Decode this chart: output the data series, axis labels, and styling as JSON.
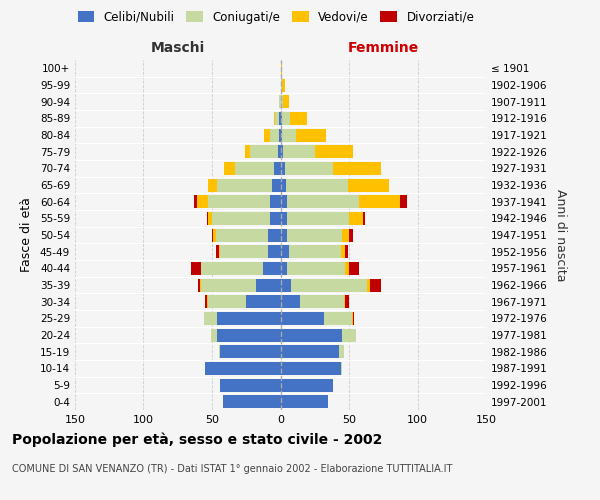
{
  "age_groups": [
    "100+",
    "95-99",
    "90-94",
    "85-89",
    "80-84",
    "75-79",
    "70-74",
    "65-69",
    "60-64",
    "55-59",
    "50-54",
    "45-49",
    "40-44",
    "35-39",
    "30-34",
    "25-29",
    "20-24",
    "15-19",
    "10-14",
    "5-9",
    "0-4"
  ],
  "birth_years": [
    "≤ 1901",
    "1902-1906",
    "1907-1911",
    "1912-1916",
    "1917-1921",
    "1922-1926",
    "1927-1931",
    "1932-1936",
    "1937-1941",
    "1942-1946",
    "1947-1951",
    "1952-1956",
    "1957-1961",
    "1962-1966",
    "1967-1971",
    "1972-1976",
    "1977-1981",
    "1982-1986",
    "1987-1991",
    "1992-1996",
    "1997-2001"
  ],
  "male": {
    "celibe": [
      0,
      0,
      0,
      1,
      1,
      2,
      5,
      6,
      8,
      8,
      9,
      9,
      13,
      18,
      25,
      46,
      46,
      44,
      55,
      44,
      42
    ],
    "coniugato": [
      0,
      0,
      1,
      3,
      7,
      20,
      28,
      40,
      45,
      42,
      38,
      35,
      45,
      40,
      28,
      10,
      5,
      1,
      0,
      0,
      0
    ],
    "vedovo": [
      0,
      0,
      0,
      1,
      4,
      4,
      8,
      7,
      8,
      3,
      2,
      1,
      0,
      1,
      1,
      0,
      0,
      0,
      0,
      0,
      0
    ],
    "divorziato": [
      0,
      0,
      0,
      0,
      0,
      0,
      0,
      0,
      2,
      1,
      1,
      2,
      7,
      1,
      1,
      0,
      0,
      0,
      0,
      0,
      0
    ]
  },
  "female": {
    "nubile": [
      0,
      0,
      0,
      1,
      1,
      2,
      3,
      4,
      5,
      5,
      5,
      6,
      5,
      8,
      14,
      32,
      45,
      43,
      44,
      38,
      35
    ],
    "coniugata": [
      0,
      1,
      2,
      6,
      10,
      23,
      35,
      45,
      52,
      45,
      40,
      38,
      42,
      55,
      32,
      20,
      10,
      3,
      1,
      0,
      0
    ],
    "vedova": [
      1,
      2,
      4,
      12,
      22,
      28,
      35,
      30,
      30,
      10,
      5,
      3,
      3,
      2,
      1,
      1,
      0,
      0,
      0,
      0,
      0
    ],
    "divorziata": [
      0,
      0,
      0,
      0,
      0,
      0,
      0,
      0,
      5,
      2,
      3,
      2,
      7,
      8,
      3,
      1,
      0,
      0,
      0,
      0,
      0
    ]
  },
  "colors": {
    "celibe": "#4472c4",
    "coniugato": "#c5d9a0",
    "vedovo": "#ffc000",
    "divorziato": "#c00000"
  },
  "title": "Popolazione per età, sesso e stato civile - 2002",
  "subtitle": "COMUNE DI SAN VENANZO (TR) - Dati ISTAT 1° gennaio 2002 - Elaborazione TUTTITALIA.IT",
  "label_maschi": "Maschi",
  "label_femmine": "Femmine",
  "ylabel_left": "Fasce di età",
  "ylabel_right": "Anni di nascita",
  "legend_labels": [
    "Celibi/Nubili",
    "Coniugati/e",
    "Vedovi/e",
    "Divorziati/e"
  ],
  "xlim": 150,
  "bg_color": "#f5f5f5",
  "grid_color": "#cccccc"
}
